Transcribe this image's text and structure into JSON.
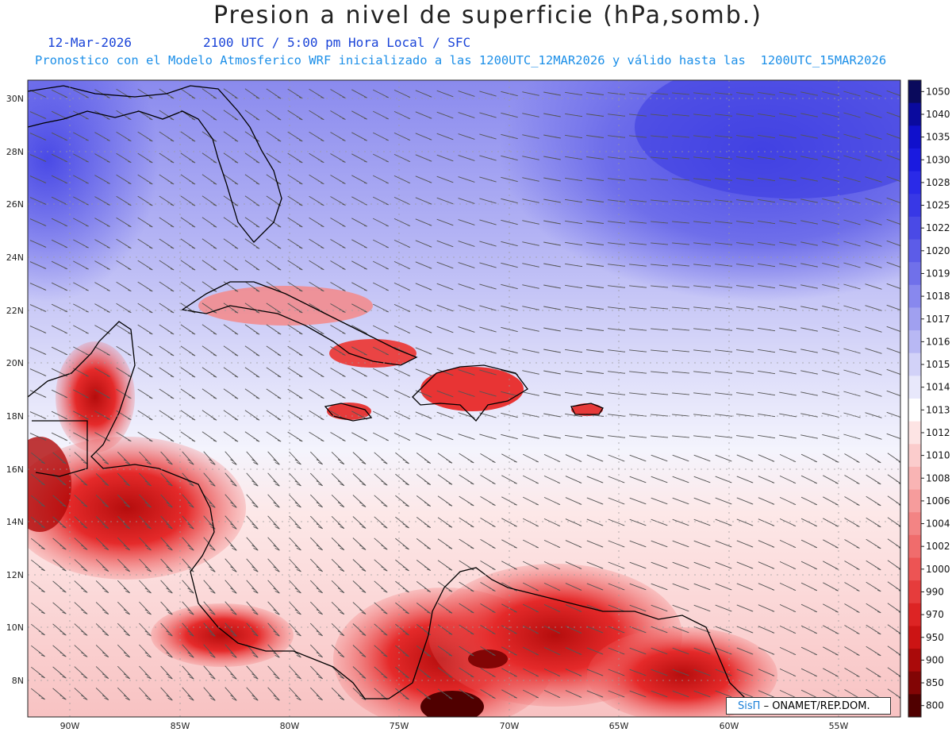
{
  "header": {
    "title": "Presion a nivel de superficie (hPa,somb.)",
    "date": "12-Mar-2026",
    "valid_time": "2100 UTC / 5:00 pm Hora Local / SFC",
    "forecast_note": "Pronostico con el Modelo Atmosferico WRF inicializado a las 1200UTC_12MAR2026 y válido hasta las  1200UTC_15MAR2026"
  },
  "axes": {
    "lat_labels": [
      "30N",
      "28N",
      "26N",
      "24N",
      "22N",
      "20N",
      "18N",
      "16N",
      "14N",
      "12N",
      "10N",
      "8N"
    ],
    "lon_labels": [
      "90W",
      "85W",
      "80W",
      "75W",
      "70W",
      "65W",
      "60W",
      "55W"
    ]
  },
  "colorbar": {
    "labels": [
      "1050",
      "1040",
      "1035",
      "1030",
      "1028",
      "1025",
      "1022",
      "1020",
      "1019",
      "1018",
      "1017",
      "1016",
      "1015",
      "1014",
      "1013",
      "1012",
      "1010",
      "1008",
      "1006",
      "1004",
      "1002",
      "1000",
      "990",
      "970",
      "950",
      "900",
      "850",
      "800"
    ],
    "colors": [
      "#0a0a5c",
      "#0a0a9e",
      "#1010cc",
      "#1a1ae0",
      "#2a2ae8",
      "#3838e6",
      "#4a4ae6",
      "#5c5ce8",
      "#7070ea",
      "#8888ee",
      "#a0a0f0",
      "#b8b8f4",
      "#d2d2f8",
      "#e8e8fb",
      "#ffffff",
      "#fde4e4",
      "#fbcccc",
      "#f9b4b4",
      "#f69c9c",
      "#f38484",
      "#f06c6c",
      "#ed5454",
      "#e63c3c",
      "#dd2424",
      "#cc1414",
      "#aa0a0a",
      "#820505",
      "#500000"
    ]
  },
  "credit": {
    "logo": "SisΠ",
    "text": "– ONAMET/REP.DOM."
  }
}
